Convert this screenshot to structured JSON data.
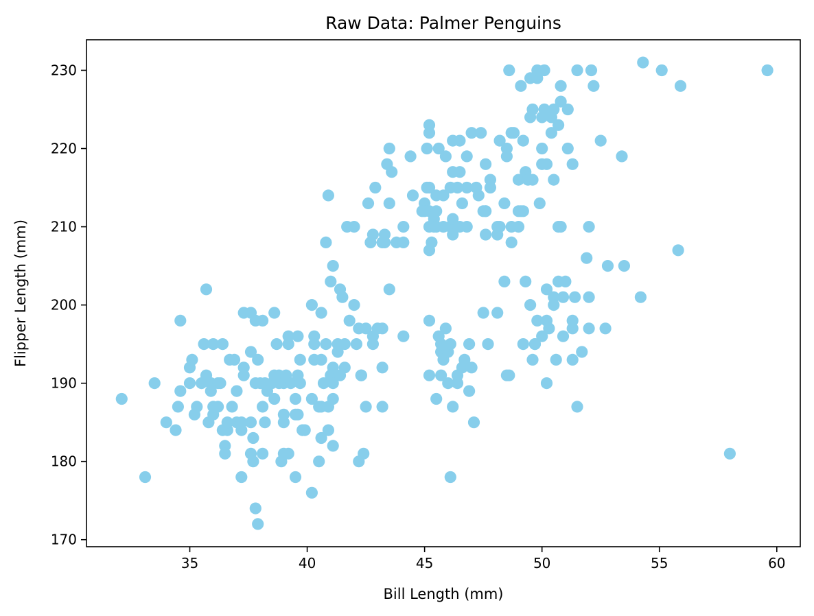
{
  "chart_data": {
    "type": "scatter",
    "title": "Raw Data: Palmer Penguins",
    "xlabel": "Bill Length (mm)",
    "ylabel": "Flipper Length (mm)",
    "xlim": [
      30.6,
      61.0
    ],
    "ylim": [
      169.1,
      233.9
    ],
    "xticks": [
      35,
      40,
      45,
      50,
      55,
      60
    ],
    "yticks": [
      170,
      180,
      190,
      200,
      210,
      220,
      230
    ],
    "grid": false,
    "legend": "none",
    "marker_color": "#87CEEB",
    "series": [
      {
        "points": [
          [
            32.1,
            188
          ],
          [
            33.1,
            178
          ],
          [
            33.5,
            190
          ],
          [
            34.0,
            185
          ],
          [
            34.4,
            184
          ],
          [
            34.5,
            187
          ],
          [
            34.6,
            189
          ],
          [
            34.6,
            198
          ],
          [
            35.0,
            192
          ],
          [
            35.0,
            190
          ],
          [
            35.1,
            193
          ],
          [
            35.2,
            186
          ],
          [
            35.3,
            187
          ],
          [
            35.5,
            190
          ],
          [
            35.6,
            195
          ],
          [
            35.7,
            191
          ],
          [
            35.7,
            202
          ],
          [
            35.8,
            185
          ],
          [
            35.9,
            189
          ],
          [
            35.9,
            190
          ],
          [
            36.0,
            195
          ],
          [
            36.0,
            186
          ],
          [
            36.0,
            187
          ],
          [
            36.2,
            187
          ],
          [
            36.2,
            190
          ],
          [
            36.3,
            190
          ],
          [
            36.4,
            184
          ],
          [
            36.4,
            195
          ],
          [
            36.5,
            182
          ],
          [
            36.5,
            181
          ],
          [
            36.6,
            184
          ],
          [
            36.6,
            185
          ],
          [
            36.7,
            193
          ],
          [
            36.8,
            187
          ],
          [
            36.9,
            193
          ],
          [
            37.0,
            189
          ],
          [
            37.0,
            185
          ],
          [
            37.2,
            185
          ],
          [
            37.2,
            178
          ],
          [
            37.3,
            191
          ],
          [
            37.3,
            192
          ],
          [
            37.3,
            199
          ],
          [
            37.2,
            184
          ],
          [
            37.6,
            199
          ],
          [
            37.6,
            194
          ],
          [
            37.6,
            185
          ],
          [
            37.6,
            181
          ],
          [
            37.7,
            183
          ],
          [
            37.7,
            180
          ],
          [
            37.8,
            198
          ],
          [
            37.8,
            190
          ],
          [
            37.8,
            174
          ],
          [
            37.9,
            172
          ],
          [
            37.9,
            193
          ],
          [
            38.0,
            190
          ],
          [
            38.1,
            181
          ],
          [
            38.1,
            187
          ],
          [
            38.1,
            198
          ],
          [
            38.2,
            185
          ],
          [
            38.2,
            190
          ],
          [
            38.3,
            189
          ],
          [
            38.5,
            190
          ],
          [
            38.6,
            191
          ],
          [
            38.6,
            199
          ],
          [
            38.6,
            188
          ],
          [
            38.7,
            195
          ],
          [
            38.8,
            191
          ],
          [
            38.8,
            190
          ],
          [
            38.9,
            180
          ],
          [
            39.0,
            181
          ],
          [
            39.0,
            185
          ],
          [
            39.0,
            186
          ],
          [
            39.0,
            190
          ],
          [
            39.1,
            191
          ],
          [
            39.2,
            181
          ],
          [
            39.2,
            195
          ],
          [
            39.2,
            196
          ],
          [
            39.3,
            190
          ],
          [
            39.5,
            178
          ],
          [
            39.5,
            186
          ],
          [
            39.5,
            188
          ],
          [
            39.6,
            191
          ],
          [
            39.6,
            186
          ],
          [
            39.6,
            196
          ],
          [
            39.7,
            190
          ],
          [
            39.7,
            193
          ],
          [
            39.8,
            184
          ],
          [
            39.9,
            184
          ],
          [
            40.2,
            188
          ],
          [
            40.2,
            176
          ],
          [
            40.2,
            200
          ],
          [
            40.3,
            193
          ],
          [
            40.3,
            196
          ],
          [
            40.3,
            195
          ],
          [
            40.5,
            187
          ],
          [
            40.5,
            180
          ],
          [
            40.6,
            183
          ],
          [
            40.6,
            187
          ],
          [
            40.6,
            193
          ],
          [
            40.6,
            199
          ],
          [
            40.7,
            190
          ],
          [
            40.8,
            195
          ],
          [
            40.8,
            208
          ],
          [
            40.9,
            214
          ],
          [
            40.9,
            184
          ],
          [
            40.9,
            187
          ],
          [
            41.0,
            191
          ],
          [
            41.0,
            203
          ],
          [
            41.1,
            190
          ],
          [
            41.1,
            188
          ],
          [
            41.1,
            182
          ],
          [
            41.1,
            192
          ],
          [
            41.1,
            205
          ],
          [
            41.3,
            194
          ],
          [
            41.3,
            195
          ],
          [
            41.4,
            202
          ],
          [
            41.4,
            191
          ],
          [
            41.5,
            201
          ],
          [
            41.6,
            195
          ],
          [
            41.6,
            192
          ],
          [
            41.7,
            210
          ],
          [
            41.8,
            198
          ],
          [
            42.0,
            210
          ],
          [
            42.0,
            200
          ],
          [
            42.1,
            195
          ],
          [
            42.2,
            180
          ],
          [
            42.2,
            197
          ],
          [
            42.3,
            191
          ],
          [
            42.4,
            181
          ],
          [
            42.5,
            187
          ],
          [
            42.5,
            197
          ],
          [
            42.6,
            213
          ],
          [
            42.7,
            208
          ],
          [
            42.8,
            209
          ],
          [
            42.8,
            195
          ],
          [
            42.8,
            196
          ],
          [
            42.9,
            215
          ],
          [
            43.0,
            197
          ],
          [
            43.2,
            192
          ],
          [
            43.2,
            187
          ],
          [
            43.2,
            197
          ],
          [
            43.2,
            208
          ],
          [
            43.3,
            209
          ],
          [
            43.3,
            208
          ],
          [
            43.4,
            218
          ],
          [
            43.5,
            220
          ],
          [
            43.5,
            213
          ],
          [
            43.5,
            202
          ],
          [
            43.6,
            217
          ],
          [
            43.8,
            208
          ],
          [
            44.1,
            208
          ],
          [
            44.1,
            210
          ],
          [
            44.1,
            196
          ],
          [
            44.4,
            219
          ],
          [
            44.5,
            214
          ],
          [
            45.0,
            213
          ],
          [
            45.0,
            212
          ],
          [
            45.1,
            220
          ],
          [
            45.1,
            215
          ],
          [
            45.2,
            223
          ],
          [
            45.2,
            212
          ],
          [
            45.2,
            210
          ],
          [
            45.2,
            207
          ],
          [
            45.2,
            215
          ],
          [
            45.2,
            198
          ],
          [
            45.2,
            191
          ],
          [
            45.3,
            208
          ],
          [
            45.4,
            211
          ],
          [
            45.4,
            210
          ],
          [
            45.5,
            210
          ],
          [
            45.5,
            212
          ],
          [
            45.5,
            188
          ],
          [
            45.5,
            214
          ],
          [
            45.6,
            220
          ],
          [
            45.6,
            196
          ],
          [
            45.7,
            191
          ],
          [
            45.7,
            194
          ],
          [
            45.7,
            195
          ],
          [
            45.8,
            210
          ],
          [
            45.8,
            193
          ],
          [
            45.8,
            214
          ],
          [
            45.9,
            219
          ],
          [
            45.9,
            197
          ],
          [
            46.0,
            194
          ],
          [
            46.0,
            190
          ],
          [
            46.1,
            195
          ],
          [
            46.1,
            210
          ],
          [
            46.1,
            215
          ],
          [
            46.2,
            211
          ],
          [
            46.2,
            209
          ],
          [
            46.2,
            217
          ],
          [
            46.2,
            221
          ],
          [
            46.2,
            187
          ],
          [
            46.4,
            215
          ],
          [
            46.4,
            190
          ],
          [
            46.4,
            191
          ],
          [
            46.5,
            210
          ],
          [
            46.5,
            221
          ],
          [
            46.5,
            217
          ],
          [
            46.6,
            213
          ],
          [
            46.6,
            192
          ],
          [
            46.7,
            193
          ],
          [
            46.8,
            215
          ],
          [
            46.8,
            210
          ],
          [
            46.8,
            219
          ],
          [
            46.9,
            195
          ],
          [
            46.9,
            189
          ],
          [
            47.0,
            222
          ],
          [
            47.0,
            192
          ],
          [
            47.1,
            185
          ],
          [
            47.2,
            215
          ],
          [
            47.3,
            214
          ],
          [
            47.4,
            222
          ],
          [
            47.5,
            212
          ],
          [
            47.5,
            199
          ],
          [
            47.6,
            218
          ],
          [
            47.6,
            212
          ],
          [
            47.6,
            209
          ],
          [
            47.7,
            195
          ],
          [
            47.8,
            216
          ],
          [
            47.8,
            215
          ],
          [
            48.1,
            210
          ],
          [
            48.1,
            209
          ],
          [
            48.1,
            199
          ],
          [
            48.2,
            221
          ],
          [
            48.2,
            210
          ],
          [
            48.4,
            213
          ],
          [
            48.4,
            203
          ],
          [
            48.5,
            220
          ],
          [
            48.5,
            219
          ],
          [
            48.5,
            191
          ],
          [
            48.6,
            230
          ],
          [
            48.7,
            222
          ],
          [
            48.7,
            210
          ],
          [
            48.7,
            208
          ],
          [
            48.8,
            222
          ],
          [
            49.0,
            216
          ],
          [
            49.0,
            210
          ],
          [
            49.1,
            228
          ],
          [
            49.1,
            212
          ],
          [
            49.2,
            221
          ],
          [
            49.2,
            212
          ],
          [
            49.2,
            195
          ],
          [
            49.3,
            217
          ],
          [
            49.3,
            203
          ],
          [
            49.4,
            216
          ],
          [
            49.5,
            224
          ],
          [
            49.5,
            200
          ],
          [
            49.5,
            229
          ],
          [
            49.6,
            216
          ],
          [
            49.6,
            193
          ],
          [
            49.6,
            225
          ],
          [
            49.7,
            195
          ],
          [
            49.8,
            198
          ],
          [
            49.8,
            229
          ],
          [
            49.8,
            230
          ],
          [
            49.9,
            213
          ],
          [
            50.0,
            224
          ],
          [
            50.0,
            218
          ],
          [
            50.0,
            220
          ],
          [
            50.0,
            196
          ],
          [
            50.1,
            230
          ],
          [
            50.1,
            225
          ],
          [
            50.2,
            218
          ],
          [
            50.2,
            202
          ],
          [
            50.2,
            198
          ],
          [
            50.3,
            197
          ],
          [
            50.4,
            224
          ],
          [
            50.4,
            222
          ],
          [
            50.5,
            216
          ],
          [
            50.5,
            201
          ],
          [
            50.5,
            200
          ],
          [
            50.5,
            225
          ],
          [
            50.6,
            193
          ],
          [
            50.7,
            223
          ],
          [
            50.7,
            203
          ],
          [
            50.8,
            226
          ],
          [
            50.8,
            210
          ],
          [
            50.8,
            228
          ],
          [
            50.9,
            201
          ],
          [
            50.9,
            196
          ],
          [
            51.0,
            203
          ],
          [
            51.1,
            220
          ],
          [
            51.1,
            225
          ],
          [
            51.3,
            218
          ],
          [
            51.3,
            197
          ],
          [
            51.3,
            198
          ],
          [
            51.3,
            193
          ],
          [
            51.4,
            201
          ],
          [
            51.5,
            230
          ],
          [
            51.5,
            187
          ],
          [
            51.7,
            194
          ],
          [
            51.9,
            206
          ],
          [
            52.0,
            210
          ],
          [
            52.0,
            201
          ],
          [
            52.0,
            197
          ],
          [
            52.1,
            230
          ],
          [
            52.2,
            228
          ],
          [
            52.5,
            221
          ],
          [
            52.7,
            197
          ],
          [
            52.8,
            205
          ],
          [
            53.4,
            219
          ],
          [
            53.5,
            205
          ],
          [
            54.2,
            201
          ],
          [
            54.3,
            231
          ],
          [
            55.1,
            230
          ],
          [
            55.8,
            207
          ],
          [
            55.9,
            228
          ],
          [
            58.0,
            181
          ],
          [
            59.6,
            230
          ],
          [
            50.2,
            190
          ],
          [
            46.1,
            178
          ],
          [
            47.6,
            212
          ],
          [
            44.9,
            212
          ],
          [
            42.3,
            191
          ],
          [
            49.7,
            195
          ],
          [
            48.6,
            191
          ],
          [
            50.7,
            210
          ],
          [
            45.2,
            222
          ],
          [
            49.0,
            212
          ]
        ]
      }
    ]
  }
}
